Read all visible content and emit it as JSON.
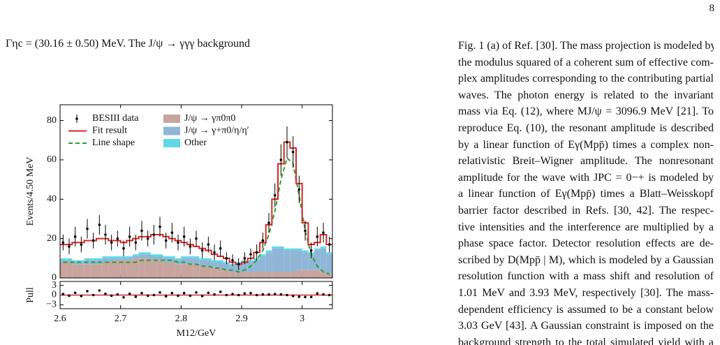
{
  "page_number": "8",
  "left_text": "Γηc = (30.16 ± 0.50) MeV. The J/ψ → γγγ background",
  "right_text": [
    "Fig. 1 (a) of Ref. [30]. The mass projection is modeled by",
    "the modulus squared of a coherent sum of effective com-",
    "plex amplitudes corresponding to the contributing partial",
    "waves. The photon energy is related to the invariant",
    "mass via Eq. (12), where MJ/ψ = 3096.9 MeV [21]. To",
    "reproduce Eq. (10), the resonant amplitude is described",
    "by a linear function of Eγ(Mpp̄) times a complex non-",
    "relativistic Breit–Wigner amplitude. The nonresonant",
    "amplitude for the wave with JPC = 0−+ is modeled by",
    "a linear function of Eγ(Mpp̄) times a Blatt–Weisskopf",
    "barrier factor described in Refs. [30, 42]. The respec-",
    "tive intensities and the interference are multiplied by a",
    "phase space factor. Detector resolution effects are de-",
    "scribed by D(Mpp̄ | M), which is modeled by a Gaussian",
    "resolution function with a mass shift and resolution of",
    "1.01 MeV and 3.93 MeV, respectively [30]. The mass-",
    "dependent efficiency is assumed to be a constant below",
    "3.03 GeV [43]. A Gaussian constraint is imposed on the",
    "background strength to the total simulated yield with a"
  ],
  "chart_data": [
    {
      "type": "histogram",
      "y_label": "Events/4.50 MeV",
      "legend": "upper left",
      "x": [
        2.605,
        2.615,
        2.625,
        2.635,
        2.645,
        2.655,
        2.665,
        2.675,
        2.685,
        2.695,
        2.705,
        2.715,
        2.725,
        2.735,
        2.745,
        2.755,
        2.765,
        2.775,
        2.785,
        2.795,
        2.805,
        2.815,
        2.825,
        2.835,
        2.845,
        2.855,
        2.865,
        2.875,
        2.885,
        2.895,
        2.905,
        2.915,
        2.925,
        2.935,
        2.945,
        2.955,
        2.965,
        2.975,
        2.985,
        2.995,
        3.005,
        3.015,
        3.025,
        3.035,
        3.045
      ],
      "xlim": [
        2.6,
        3.05
      ],
      "xticks": [
        2.6,
        2.7,
        2.8,
        2.9,
        3.0
      ],
      "ylim": [
        0,
        88
      ],
      "yticks": [
        0,
        20,
        40,
        60,
        80
      ],
      "series": [
        {
          "name": "J/ψ → γπ0π0",
          "kind": "stacked",
          "color": "#c8a49e",
          "values": [
            8,
            8,
            7,
            7,
            7,
            7,
            7,
            8,
            8,
            9,
            9,
            9,
            10,
            10,
            10,
            9,
            9,
            8,
            8,
            7,
            7,
            7,
            7,
            6,
            6,
            5,
            5,
            4,
            3,
            3,
            3,
            3,
            3,
            3,
            3,
            3,
            3,
            3,
            3,
            4,
            4,
            4,
            4,
            3,
            2
          ]
        },
        {
          "name": "J/ψ → γ+π0/η/η′",
          "kind": "stacked",
          "color": "#8fb6d6",
          "values": [
            1,
            1,
            1,
            1,
            2,
            2,
            2,
            2,
            2,
            1,
            1,
            1,
            1,
            2,
            2,
            2,
            2,
            2,
            2,
            2,
            3,
            3,
            3,
            3,
            3,
            3,
            3,
            3,
            3,
            4,
            5,
            5,
            6,
            8,
            10,
            12,
            12,
            11,
            11,
            10,
            9,
            8,
            10,
            12,
            10
          ]
        },
        {
          "name": "Other",
          "kind": "stacked",
          "color": "#5fd8e8",
          "values": [
            1,
            1,
            1,
            1,
            1,
            1,
            1,
            1,
            1,
            1,
            1,
            1,
            1,
            1,
            1,
            1,
            1,
            1,
            1,
            1,
            1,
            1,
            1,
            1,
            1,
            1,
            1,
            1,
            1,
            1,
            1,
            1,
            1,
            1,
            1,
            1,
            1,
            1,
            1,
            1,
            1,
            1,
            1,
            1,
            1
          ]
        },
        {
          "name": "Line shape",
          "kind": "dashed",
          "color": "#2ca02c",
          "values": [
            8,
            8,
            8,
            8,
            8,
            8,
            8,
            8,
            8,
            8,
            8,
            8,
            8,
            9,
            9,
            9,
            9,
            9,
            9,
            8,
            8,
            7,
            7,
            6,
            6,
            5,
            5,
            4,
            4,
            3,
            4,
            6,
            9,
            14,
            22,
            34,
            50,
            61,
            58,
            42,
            24,
            12,
            6,
            3,
            2
          ]
        },
        {
          "name": "Fit result",
          "kind": "step",
          "color": "#d62728",
          "values": [
            17,
            17,
            18,
            18,
            19,
            19,
            20,
            20,
            19,
            19,
            18,
            19,
            20,
            21,
            21,
            22,
            22,
            21,
            20,
            19,
            18,
            17,
            16,
            15,
            14,
            12,
            11,
            10,
            8,
            7,
            8,
            10,
            13,
            18,
            27,
            40,
            58,
            69,
            66,
            48,
            28,
            17,
            18,
            22,
            17
          ]
        },
        {
          "name": "BESIII data",
          "kind": "errorbar",
          "color": "#000000",
          "values": [
            18,
            16,
            21,
            17,
            25,
            19,
            27,
            22,
            18,
            20,
            15,
            21,
            18,
            24,
            20,
            22,
            26,
            19,
            23,
            18,
            21,
            16,
            20,
            14,
            17,
            13,
            15,
            10,
            9,
            7,
            10,
            12,
            13,
            19,
            28,
            42,
            60,
            69,
            64,
            45,
            24,
            14,
            21,
            23,
            17
          ],
          "errors": [
            4,
            4,
            5,
            4,
            5,
            4,
            5,
            5,
            4,
            4,
            4,
            5,
            4,
            5,
            4,
            5,
            5,
            4,
            5,
            4,
            5,
            4,
            4,
            4,
            4,
            4,
            4,
            3,
            3,
            3,
            3,
            3,
            4,
            4,
            5,
            6,
            8,
            8,
            8,
            7,
            5,
            4,
            5,
            5,
            4
          ]
        }
      ]
    },
    {
      "type": "scatter",
      "x_label": "M12/GeV",
      "y_label": "Pull",
      "color": "#000000",
      "line_color": "#d62728",
      "x": [
        2.605,
        2.615,
        2.625,
        2.635,
        2.645,
        2.655,
        2.665,
        2.675,
        2.685,
        2.695,
        2.705,
        2.715,
        2.725,
        2.735,
        2.745,
        2.755,
        2.765,
        2.775,
        2.785,
        2.795,
        2.805,
        2.815,
        2.825,
        2.835,
        2.845,
        2.855,
        2.865,
        2.875,
        2.885,
        2.895,
        2.905,
        2.915,
        2.925,
        2.935,
        2.945,
        2.955,
        2.965,
        2.975,
        2.985,
        2.995,
        3.005,
        3.015,
        3.025,
        3.035,
        3.045
      ],
      "values": [
        0.3,
        -0.2,
        0.7,
        -0.3,
        1.2,
        0,
        1.4,
        0.4,
        -0.2,
        0.2,
        -0.7,
        0.4,
        -0.5,
        0.6,
        -0.2,
        0,
        0.8,
        -0.4,
        0.6,
        -0.2,
        0.6,
        -0.2,
        0.8,
        -0.3,
        0.7,
        0.2,
        1,
        0,
        0.3,
        0,
        0.5,
        0.6,
        0,
        0.2,
        0.2,
        0.3,
        0.2,
        0,
        -0.3,
        -0.5,
        -0.6,
        -0.6,
        0.5,
        0.2,
        0
      ],
      "xlim": [
        2.6,
        3.05
      ],
      "xticks": [
        2.6,
        2.7,
        2.8,
        2.9,
        3.0
      ],
      "ylim": [
        -4.2,
        4.2
      ],
      "yticks": [
        3,
        0,
        {
          "value": -3,
          "label": "−3"
        }
      ]
    }
  ]
}
